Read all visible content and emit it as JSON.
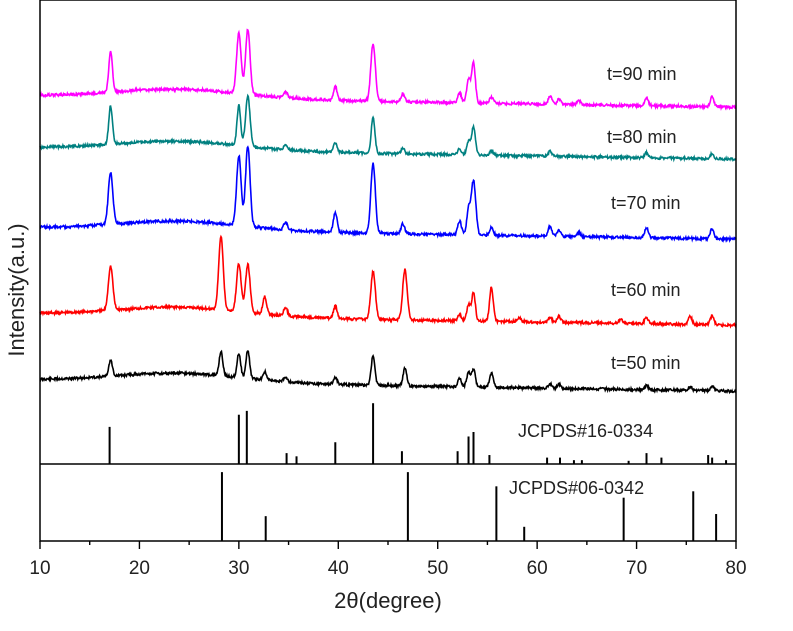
{
  "chart_data": {
    "type": "line",
    "title": "",
    "xlabel": "2θ(degree)",
    "ylabel": "Intensity(a.u.)",
    "xlim": [
      10,
      80
    ],
    "xticks": [
      10,
      20,
      30,
      40,
      50,
      60,
      70,
      80
    ],
    "series": [
      {
        "name": "t=50 min",
        "color": "#000000",
        "baseline": 380,
        "peaks": [
          [
            17.1,
            16
          ],
          [
            28.2,
            24
          ],
          [
            30.0,
            24
          ],
          [
            30.9,
            28
          ],
          [
            32.6,
            8
          ],
          [
            34.7,
            5
          ],
          [
            39.7,
            7
          ],
          [
            43.5,
            30
          ],
          [
            46.7,
            18
          ],
          [
            52.2,
            8
          ],
          [
            53.1,
            14
          ],
          [
            53.6,
            18
          ],
          [
            55.4,
            14
          ],
          [
            61.3,
            4
          ],
          [
            62.2,
            4
          ],
          [
            71.0,
            4
          ],
          [
            75.4,
            4
          ],
          [
            77.6,
            5
          ]
        ]
      },
      {
        "name": "t=60 min",
        "color": "#ff0000",
        "baseline": 314,
        "peaks": [
          [
            17.1,
            44
          ],
          [
            28.2,
            74
          ],
          [
            30.0,
            48
          ],
          [
            30.9,
            48
          ],
          [
            32.6,
            18
          ],
          [
            34.7,
            8
          ],
          [
            39.7,
            12
          ],
          [
            43.5,
            48
          ],
          [
            46.7,
            50
          ],
          [
            52.2,
            6
          ],
          [
            53.1,
            16
          ],
          [
            53.6,
            28
          ],
          [
            55.4,
            34
          ],
          [
            58.2,
            4
          ],
          [
            61.3,
            5
          ],
          [
            62.2,
            6
          ],
          [
            68.4,
            4
          ],
          [
            71.0,
            6
          ],
          [
            75.4,
            8
          ],
          [
            77.6,
            9
          ]
        ]
      },
      {
        "name": "t=70 min",
        "color": "#0000ff",
        "baseline": 228,
        "peaks": [
          [
            17.1,
            52
          ],
          [
            30.0,
            70
          ],
          [
            30.9,
            80
          ],
          [
            34.7,
            8
          ],
          [
            39.7,
            20
          ],
          [
            43.5,
            70
          ],
          [
            46.5,
            10
          ],
          [
            52.2,
            14
          ],
          [
            53.1,
            24
          ],
          [
            53.6,
            54
          ],
          [
            55.4,
            8
          ],
          [
            61.3,
            10
          ],
          [
            62.2,
            6
          ],
          [
            64.2,
            4
          ],
          [
            71.0,
            10
          ],
          [
            77.6,
            10
          ]
        ]
      },
      {
        "name": "t=80 min",
        "color": "#008080",
        "baseline": 148,
        "peaks": [
          [
            17.1,
            38
          ],
          [
            30.0,
            40
          ],
          [
            30.9,
            50
          ],
          [
            34.7,
            5
          ],
          [
            39.7,
            10
          ],
          [
            43.5,
            36
          ],
          [
            46.5,
            5
          ],
          [
            52.2,
            6
          ],
          [
            53.1,
            14
          ],
          [
            53.6,
            28
          ],
          [
            55.4,
            5
          ],
          [
            61.3,
            5
          ],
          [
            71.0,
            5
          ],
          [
            77.6,
            5
          ]
        ]
      },
      {
        "name": "t=90 min",
        "color": "#ff00ff",
        "baseline": 96,
        "peaks": [
          [
            17.1,
            40
          ],
          [
            30.0,
            60
          ],
          [
            30.9,
            65
          ],
          [
            34.7,
            6
          ],
          [
            39.7,
            14
          ],
          [
            43.5,
            58
          ],
          [
            46.5,
            8
          ],
          [
            52.2,
            10
          ],
          [
            53.1,
            24
          ],
          [
            53.6,
            40
          ],
          [
            55.4,
            6
          ],
          [
            61.3,
            8
          ],
          [
            62.2,
            5
          ],
          [
            64.2,
            4
          ],
          [
            71.0,
            8
          ],
          [
            77.6,
            10
          ]
        ]
      }
    ],
    "reference_patterns": [
      {
        "name": "JCPDS#16-0334",
        "sticks": [
          [
            17.0,
            0.58
          ],
          [
            30.0,
            0.77
          ],
          [
            30.8,
            0.83
          ],
          [
            34.8,
            0.17
          ],
          [
            35.8,
            0.12
          ],
          [
            39.7,
            0.34
          ],
          [
            43.5,
            0.95
          ],
          [
            46.4,
            0.2
          ],
          [
            52.0,
            0.2
          ],
          [
            53.1,
            0.43
          ],
          [
            53.6,
            0.5
          ],
          [
            55.2,
            0.14
          ],
          [
            61.0,
            0.1
          ],
          [
            62.3,
            0.1
          ],
          [
            63.7,
            0.06
          ],
          [
            64.5,
            0.06
          ],
          [
            69.2,
            0.05
          ],
          [
            71.0,
            0.17
          ],
          [
            72.5,
            0.1
          ],
          [
            77.2,
            0.14
          ],
          [
            77.6,
            0.1
          ],
          [
            79.0,
            0.06
          ]
        ]
      },
      {
        "name": "JCPDS#06-0342",
        "sticks": [
          [
            28.3,
            0.97
          ],
          [
            32.7,
            0.35
          ],
          [
            47.0,
            0.97
          ],
          [
            55.9,
            0.77
          ],
          [
            58.7,
            0.2
          ],
          [
            68.7,
            0.61
          ],
          [
            75.7,
            0.7
          ],
          [
            78.0,
            0.38
          ]
        ]
      }
    ]
  }
}
